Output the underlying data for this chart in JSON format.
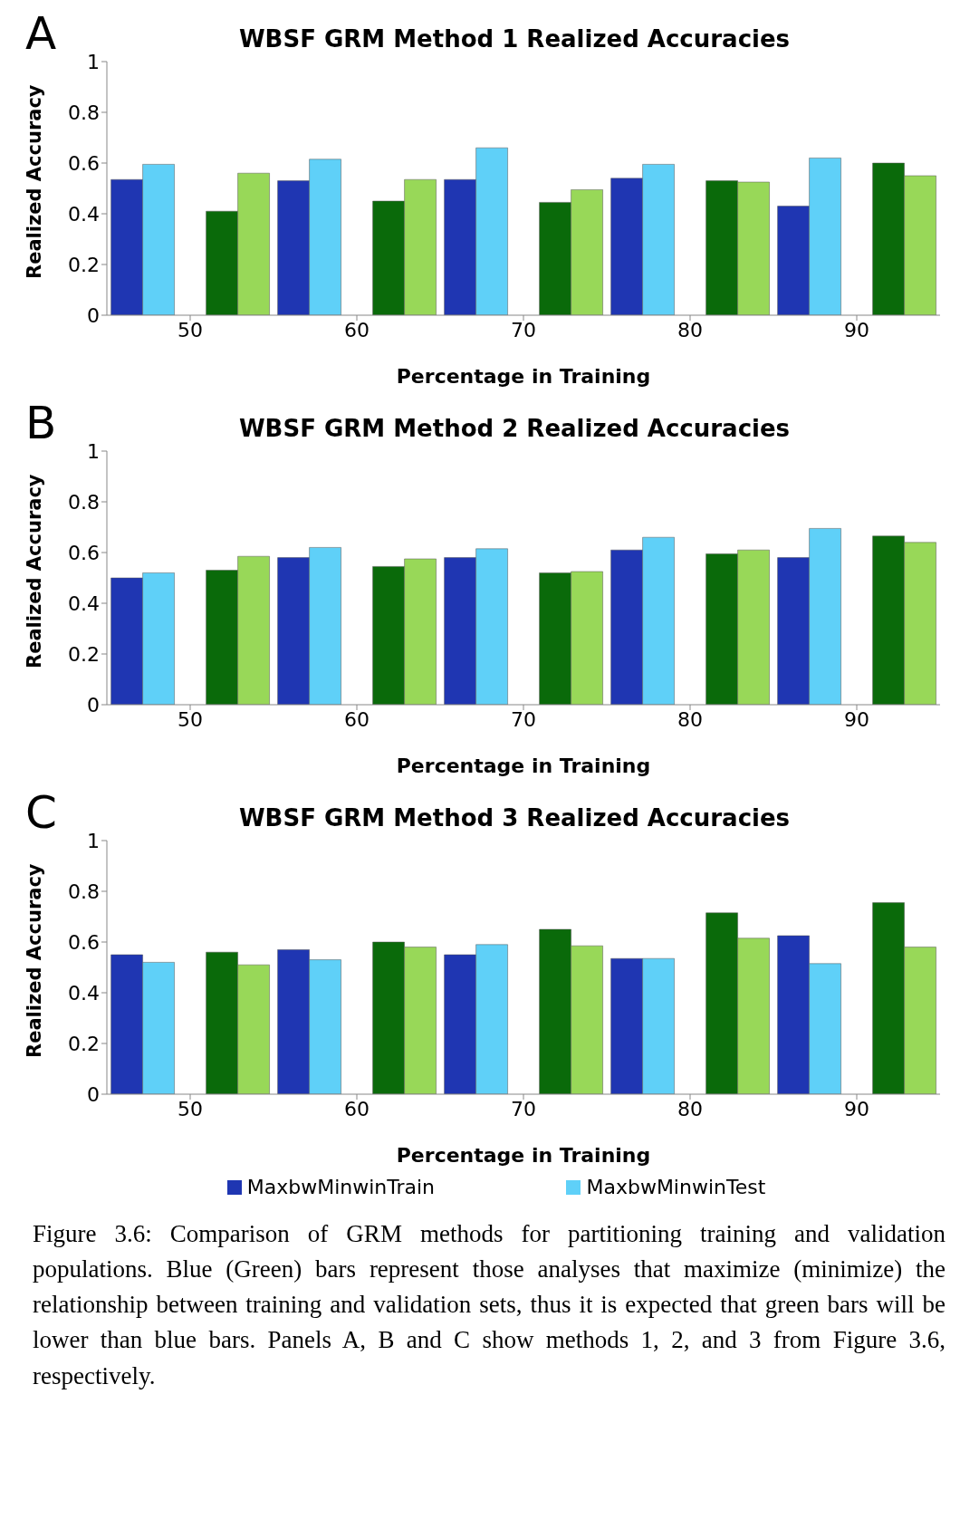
{
  "chart_data": [
    {
      "type": "bar",
      "title": "WBSF GRM Method 1 Realized Accuracies",
      "xlabel": "Percentage in Training",
      "ylabel": "Realized Accuracy",
      "annotations": [
        "A"
      ],
      "categories": [
        "50",
        "60",
        "70",
        "80",
        "90"
      ],
      "ylim": [
        0,
        1
      ],
      "yticks": [
        0,
        0.2,
        0.4,
        0.6,
        0.8,
        1
      ],
      "grid": false,
      "legend": false,
      "series": [
        {
          "color": "#1f36b2",
          "values": [
            0.535,
            0.53,
            0.535,
            0.54,
            0.43
          ]
        },
        {
          "color": "#5fd0f8",
          "values": [
            0.595,
            0.615,
            0.66,
            0.595,
            0.62
          ]
        },
        {
          "color": "#0a6a0a",
          "values": [
            0.41,
            0.45,
            0.445,
            0.53,
            0.6
          ]
        },
        {
          "color": "#98d858",
          "values": [
            0.56,
            0.535,
            0.495,
            0.525,
            0.55
          ]
        }
      ]
    },
    {
      "type": "bar",
      "title": "WBSF GRM Method 2 Realized Accuracies",
      "xlabel": "Percentage in Training",
      "ylabel": "Realized Accuracy",
      "annotations": [
        "B"
      ],
      "categories": [
        "50",
        "60",
        "70",
        "80",
        "90"
      ],
      "ylim": [
        0,
        1
      ],
      "yticks": [
        0,
        0.2,
        0.4,
        0.6,
        0.8,
        1
      ],
      "grid": false,
      "legend": false,
      "series": [
        {
          "color": "#1f36b2",
          "values": [
            0.5,
            0.58,
            0.58,
            0.61,
            0.58
          ]
        },
        {
          "color": "#5fd0f8",
          "values": [
            0.52,
            0.62,
            0.615,
            0.66,
            0.695
          ]
        },
        {
          "color": "#0a6a0a",
          "values": [
            0.53,
            0.545,
            0.52,
            0.595,
            0.665
          ]
        },
        {
          "color": "#98d858",
          "values": [
            0.585,
            0.575,
            0.525,
            0.61,
            0.64
          ]
        }
      ]
    },
    {
      "type": "bar",
      "title": "WBSF GRM Method 3 Realized Accuracies",
      "xlabel": "Percentage in Training",
      "ylabel": "Realized Accuracy",
      "annotations": [
        "C",
        "Figure 3.6:  Comparison of GRM methods for partitioning training and validation populations.  Blue (Green) bars represent those analyses that maximize (minimize) the relationship between training and validation sets, thus it is expected that green bars will be lower than blue bars.  Panels A, B and C show methods 1, 2, and 3 from Figure 3.6, respectively."
      ],
      "categories": [
        "50",
        "60",
        "70",
        "80",
        "90"
      ],
      "ylim": [
        0,
        1
      ],
      "yticks": [
        0,
        0.2,
        0.4,
        0.6,
        0.8,
        1
      ],
      "grid": false,
      "legend": "bottom",
      "series": [
        {
          "name": "MaxbwMinwinTrain",
          "color": "#1f36b2",
          "values": [
            0.55,
            0.57,
            0.55,
            0.535,
            0.625
          ]
        },
        {
          "name": "MaxbwMinwinTest",
          "color": "#5fd0f8",
          "values": [
            0.52,
            0.53,
            0.59,
            0.535,
            0.515
          ]
        },
        {
          "color": "#0a6a0a",
          "values": [
            0.56,
            0.6,
            0.65,
            0.715,
            0.755
          ]
        },
        {
          "color": "#98d858",
          "values": [
            0.51,
            0.58,
            0.585,
            0.615,
            0.58
          ]
        }
      ]
    }
  ]
}
